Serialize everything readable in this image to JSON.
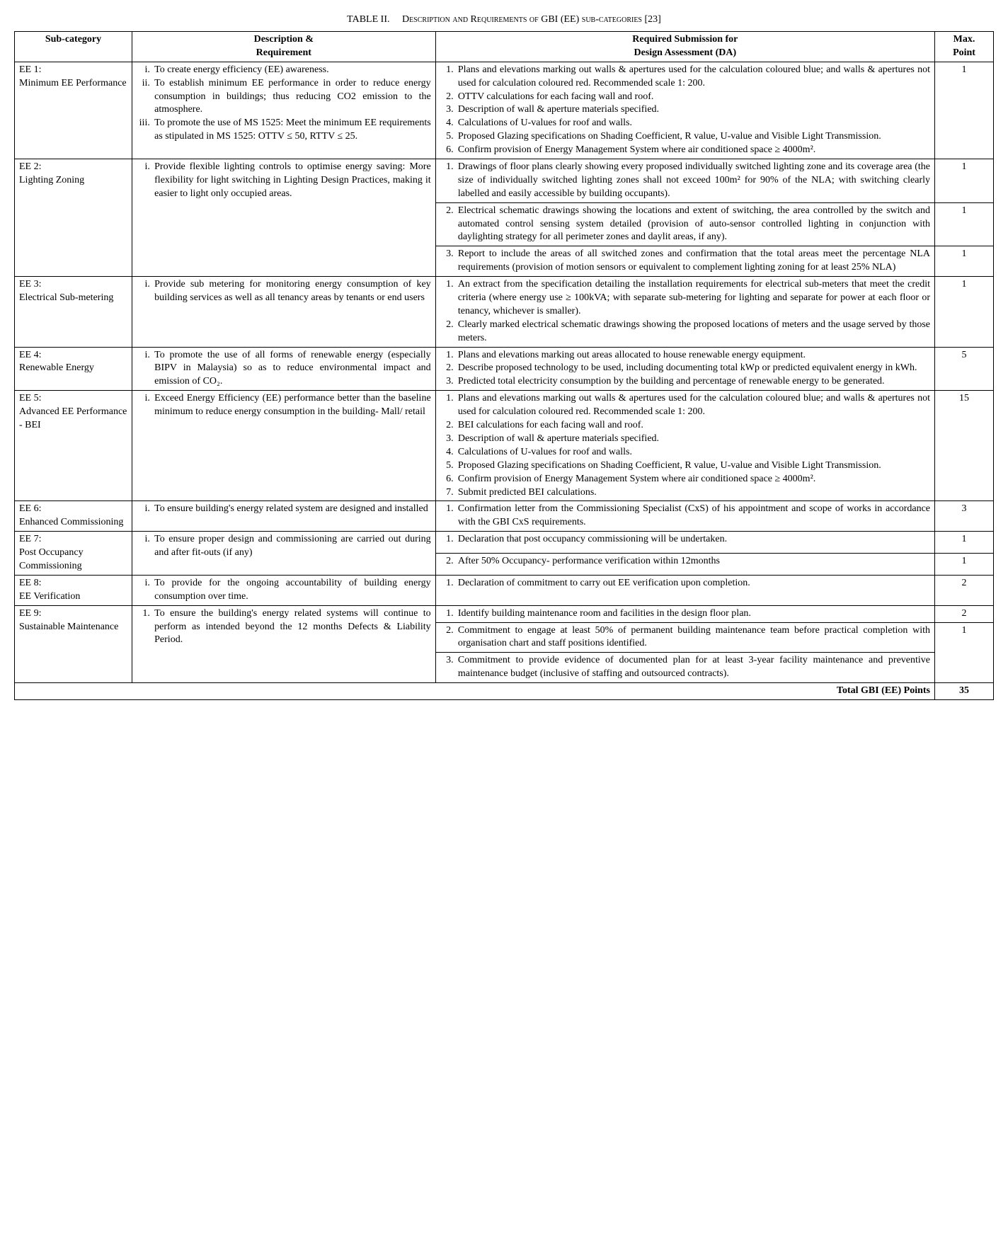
{
  "caption_label": "TABLE II.",
  "caption_title": "Description and Requirements of GBI (EE) sub-categories [23]",
  "headers": {
    "h1": "Sub-category",
    "h2": "Description &\nRequirement",
    "h3": "Required Submission for\nDesign Assessment (DA)",
    "h4": "Max.\nPoint"
  },
  "ee1": {
    "sub": "EE 1:\nMinimum EE Performance",
    "desc": [
      "To create energy efficiency (EE) awareness.",
      "To establish minimum EE performance in order to reduce energy consumption in buildings; thus reducing CO2 emission to the atmosphere.",
      "To promote the use of MS 1525: Meet the minimum EE requirements as stipulated in MS 1525: OTTV ≤ 50, RTTV ≤ 25."
    ],
    "sub_items": [
      "Plans and elevations marking out walls & apertures used for the calculation coloured blue; and walls & apertures not used for calculation coloured red. Recommended scale 1: 200.",
      "OTTV calculations for each facing wall and roof.",
      "Description of wall & aperture materials specified.",
      "Calculations of U-values for roof and walls.",
      "Proposed Glazing specifications on Shading Coefficient, R value, U-value and Visible Light Transmission.",
      "Confirm provision of Energy Management System where air conditioned space ≥ 4000m²."
    ],
    "pt": "1"
  },
  "ee2": {
    "sub": "EE 2:\nLighting Zoning",
    "desc": [
      "Provide flexible lighting controls to optimise energy saving: More flexibility for light switching in Lighting Design Practices, making it easier to light only occupied areas."
    ],
    "s1": "Drawings of floor plans clearly showing every proposed individually switched lighting zone and its coverage area (the size of individually switched lighting zones shall not exceed 100m² for 90% of the NLA; with switching clearly labelled and easily accessible by building occupants).",
    "s2": "Electrical schematic drawings showing the locations and extent of switching, the area controlled by the switch and automated control sensing system detailed (provision of auto-sensor controlled lighting in conjunction with daylighting strategy for all perimeter zones and daylit areas, if any).",
    "s3": "Report to include the areas of all switched zones and confirmation that the total areas meet the percentage NLA requirements (provision of motion sensors or equivalent to complement lighting zoning for at least 25% NLA)",
    "pt1": "1",
    "pt2": "1",
    "pt3": "1"
  },
  "ee3": {
    "sub": "EE 3:\nElectrical Sub-metering",
    "desc": [
      "Provide sub metering for monitoring energy consumption of key building services as well as all tenancy areas by tenants or end users"
    ],
    "sub_items": [
      "An extract from the specification detailing the installation requirements for electrical sub-meters that meet the credit criteria (where energy use ≥ 100kVA; with separate sub-metering for lighting and separate for power at each floor or tenancy, whichever is smaller).",
      "Clearly marked electrical schematic drawings showing the proposed locations of meters and the usage served by those meters."
    ],
    "pt": "1"
  },
  "ee4": {
    "sub": "EE 4:\nRenewable Energy",
    "desc": [
      "To promote the use of all forms of renewable energy (especially BIPV in Malaysia) so as to reduce environmental impact and emission of CO₂."
    ],
    "sub_items": [
      "Plans and elevations marking out areas allocated to house renewable energy equipment.",
      "Describe proposed technology to be used, including documenting total kWp or predicted equivalent energy in kWh.",
      "Predicted total electricity consumption by the building and percentage of renewable energy to be generated."
    ],
    "pt": "5"
  },
  "ee5": {
    "sub": "EE 5:\nAdvanced EE Performance - BEI",
    "desc": [
      "Exceed Energy Efficiency (EE) performance better than the baseline minimum to reduce energy consumption in the building- Mall/ retail"
    ],
    "sub_items": [
      "Plans and elevations marking out walls & apertures used for the calculation coloured blue; and walls & apertures not used for calculation coloured red. Recommended scale 1: 200.",
      "BEI calculations for each facing wall and roof.",
      "Description of wall & aperture materials specified.",
      "Calculations of U-values for roof and walls.",
      "Proposed Glazing specifications on Shading Coefficient, R value, U-value and Visible Light Transmission.",
      "Confirm provision of Energy Management System where air conditioned space ≥ 4000m².",
      "Submit predicted BEI calculations."
    ],
    "pt": "15"
  },
  "ee6": {
    "sub": "EE 6:\nEnhanced Commissioning",
    "desc": [
      "To ensure building's energy related system are designed and installed"
    ],
    "sub_items": [
      "Confirmation letter from the Commissioning Specialist (CxS) of his appointment and scope of works in accordance with the GBI CxS requirements."
    ],
    "pt": "3"
  },
  "ee7": {
    "sub": "EE 7:\nPost Occupancy Commissioning",
    "desc": [
      "To ensure proper design and commissioning are carried out during and after fit-outs (if any)"
    ],
    "s1": "Declaration that post occupancy commissioning will be undertaken.",
    "s2": "After 50% Occupancy- performance verification within 12months",
    "pt1": "1",
    "pt2": "1"
  },
  "ee8": {
    "sub": "EE 8:\nEE Verification",
    "desc": [
      "To provide for the ongoing accountability of building energy consumption over time."
    ],
    "sub_items": [
      "Declaration of commitment to carry out EE verification upon completion."
    ],
    "pt": "2"
  },
  "ee9": {
    "sub": "EE 9:\nSustainable Maintenance",
    "desc": [
      "To ensure the building's energy related systems will continue to perform as intended beyond the 12 months Defects & Liability Period."
    ],
    "s1": "Identify building maintenance room and facilities in the design floor plan.",
    "s2": "Commitment to engage at least 50% of permanent building maintenance team before practical completion with organisation chart and staff positions identified.",
    "s3": "Commitment to provide evidence of documented plan for at least 3-year facility maintenance and preventive maintenance budget (inclusive of staffing and outsourced contracts).",
    "pt1": "2",
    "pt2": "1"
  },
  "total_label": "Total GBI (EE) Points",
  "total_value": "35"
}
